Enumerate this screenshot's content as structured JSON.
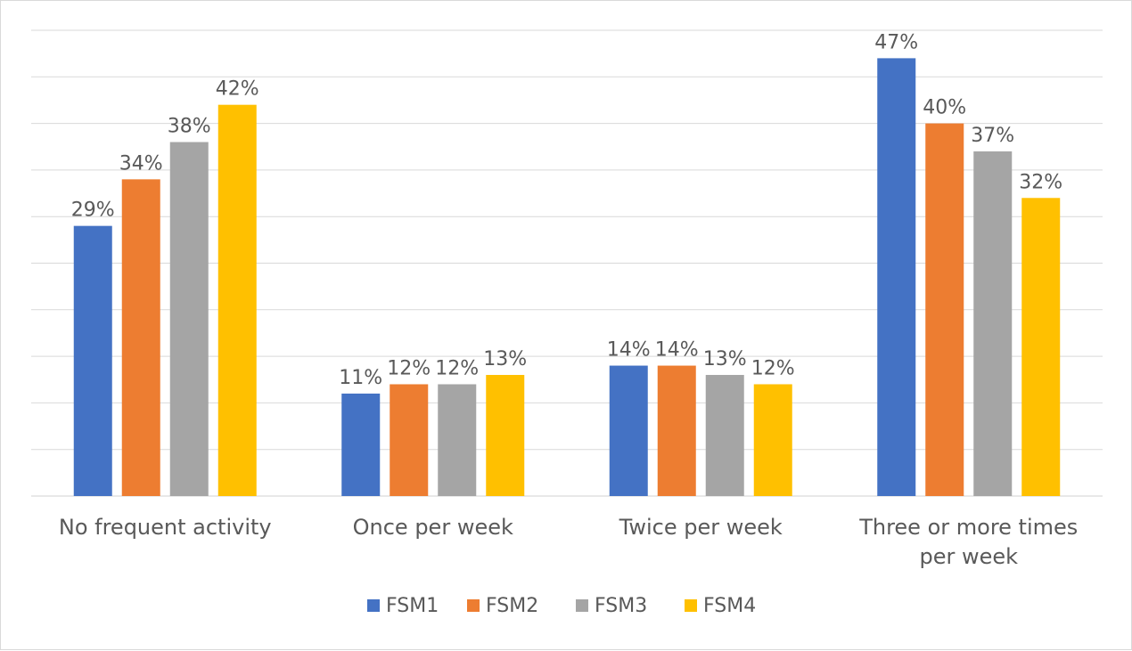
{
  "chart_data": {
    "type": "bar",
    "categories": [
      [
        "No frequent activity"
      ],
      [
        "Once per week"
      ],
      [
        "Twice per week"
      ],
      [
        "Three or more times",
        "per week"
      ]
    ],
    "series": [
      {
        "name": "FSM1",
        "color": "#4472C4",
        "values": [
          29,
          11,
          14,
          47
        ],
        "labels": [
          "29%",
          "11%",
          "14%",
          "47%"
        ]
      },
      {
        "name": "FSM2",
        "color": "#ED7D31",
        "values": [
          34,
          12,
          14,
          40
        ],
        "labels": [
          "34%",
          "12%",
          "14%",
          "40%"
        ]
      },
      {
        "name": "FSM3",
        "color": "#A5A5A5",
        "values": [
          38,
          12,
          13,
          37
        ],
        "labels": [
          "38%",
          "12%",
          "13%",
          "37%"
        ]
      },
      {
        "name": "FSM4",
        "color": "#FFC000",
        "values": [
          42,
          13,
          12,
          32
        ],
        "labels": [
          "42%",
          "13%",
          "12%",
          "32%"
        ]
      }
    ],
    "ylim": [
      0,
      50
    ],
    "grid": true,
    "legend": "bottom",
    "title": "",
    "xlabel": "",
    "ylabel": ""
  }
}
